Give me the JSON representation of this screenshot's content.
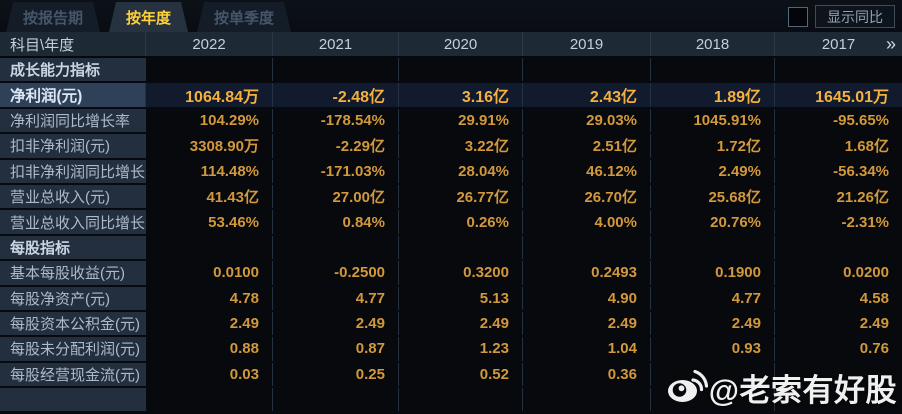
{
  "tabs": [
    {
      "label": "按报告期",
      "active": false
    },
    {
      "label": "按年度",
      "active": true
    },
    {
      "label": "按单季度",
      "active": false
    }
  ],
  "controls": {
    "compare_label": "显示同比",
    "checkbox_checked": false
  },
  "table": {
    "corner_header": "科目\\年度",
    "years": [
      "2022",
      "2021",
      "2020",
      "2019",
      "2018",
      "2017"
    ],
    "more_icon": "»",
    "rows": [
      {
        "type": "section",
        "label": "成长能力指标",
        "values": [
          "",
          "",
          "",
          "",
          "",
          ""
        ]
      },
      {
        "type": "highlight",
        "label": "净利润(元)",
        "values": [
          "1064.84万",
          "-2.48亿",
          "3.16亿",
          "2.43亿",
          "1.89亿",
          "1645.01万"
        ]
      },
      {
        "type": "normal",
        "label": "净利润同比增长率",
        "values": [
          "104.29%",
          "-178.54%",
          "29.91%",
          "29.03%",
          "1045.91%",
          "-95.65%"
        ]
      },
      {
        "type": "normal",
        "label": "扣非净利润(元)",
        "values": [
          "3308.90万",
          "-2.29亿",
          "3.22亿",
          "2.51亿",
          "1.72亿",
          "1.68亿"
        ]
      },
      {
        "type": "normal",
        "label": "扣非净利润同比增长率",
        "values": [
          "114.48%",
          "-171.03%",
          "28.04%",
          "46.12%",
          "2.49%",
          "-56.34%"
        ]
      },
      {
        "type": "normal",
        "label": "营业总收入(元)",
        "values": [
          "41.43亿",
          "27.00亿",
          "26.77亿",
          "26.70亿",
          "25.68亿",
          "21.26亿"
        ]
      },
      {
        "type": "normal",
        "label": "营业总收入同比增长率",
        "values": [
          "53.46%",
          "0.84%",
          "0.26%",
          "4.00%",
          "20.76%",
          "-2.31%"
        ]
      },
      {
        "type": "section",
        "label": "每股指标",
        "values": [
          "",
          "",
          "",
          "",
          "",
          ""
        ]
      },
      {
        "type": "normal",
        "label": "基本每股收益(元)",
        "values": [
          "0.0100",
          "-0.2500",
          "0.3200",
          "0.2493",
          "0.1900",
          "0.0200"
        ]
      },
      {
        "type": "normal",
        "label": "每股净资产(元)",
        "values": [
          "4.78",
          "4.77",
          "5.13",
          "4.90",
          "4.77",
          "4.58"
        ]
      },
      {
        "type": "normal",
        "label": "每股资本公积金(元)",
        "values": [
          "2.49",
          "2.49",
          "2.49",
          "2.49",
          "2.49",
          "2.49"
        ]
      },
      {
        "type": "normal",
        "label": "每股未分配利润(元)",
        "values": [
          "0.88",
          "0.87",
          "1.23",
          "1.04",
          "0.93",
          "0.76"
        ]
      },
      {
        "type": "normal",
        "label": "每股经营现金流(元)",
        "values": [
          "0.03",
          "0.25",
          "0.52",
          "0.36",
          "",
          ""
        ]
      }
    ]
  },
  "watermark": {
    "text": "@老索有好股",
    "icon": "weibo-icon"
  },
  "colors": {
    "value_gold": "#d2983c",
    "highlight_gold": "#f5b13d",
    "tab_active_text": "#ffd037",
    "highlight_row_bg": "#121a2d",
    "label_cell_bg": "#232f3f",
    "header_row_bg": "#1e2936"
  }
}
